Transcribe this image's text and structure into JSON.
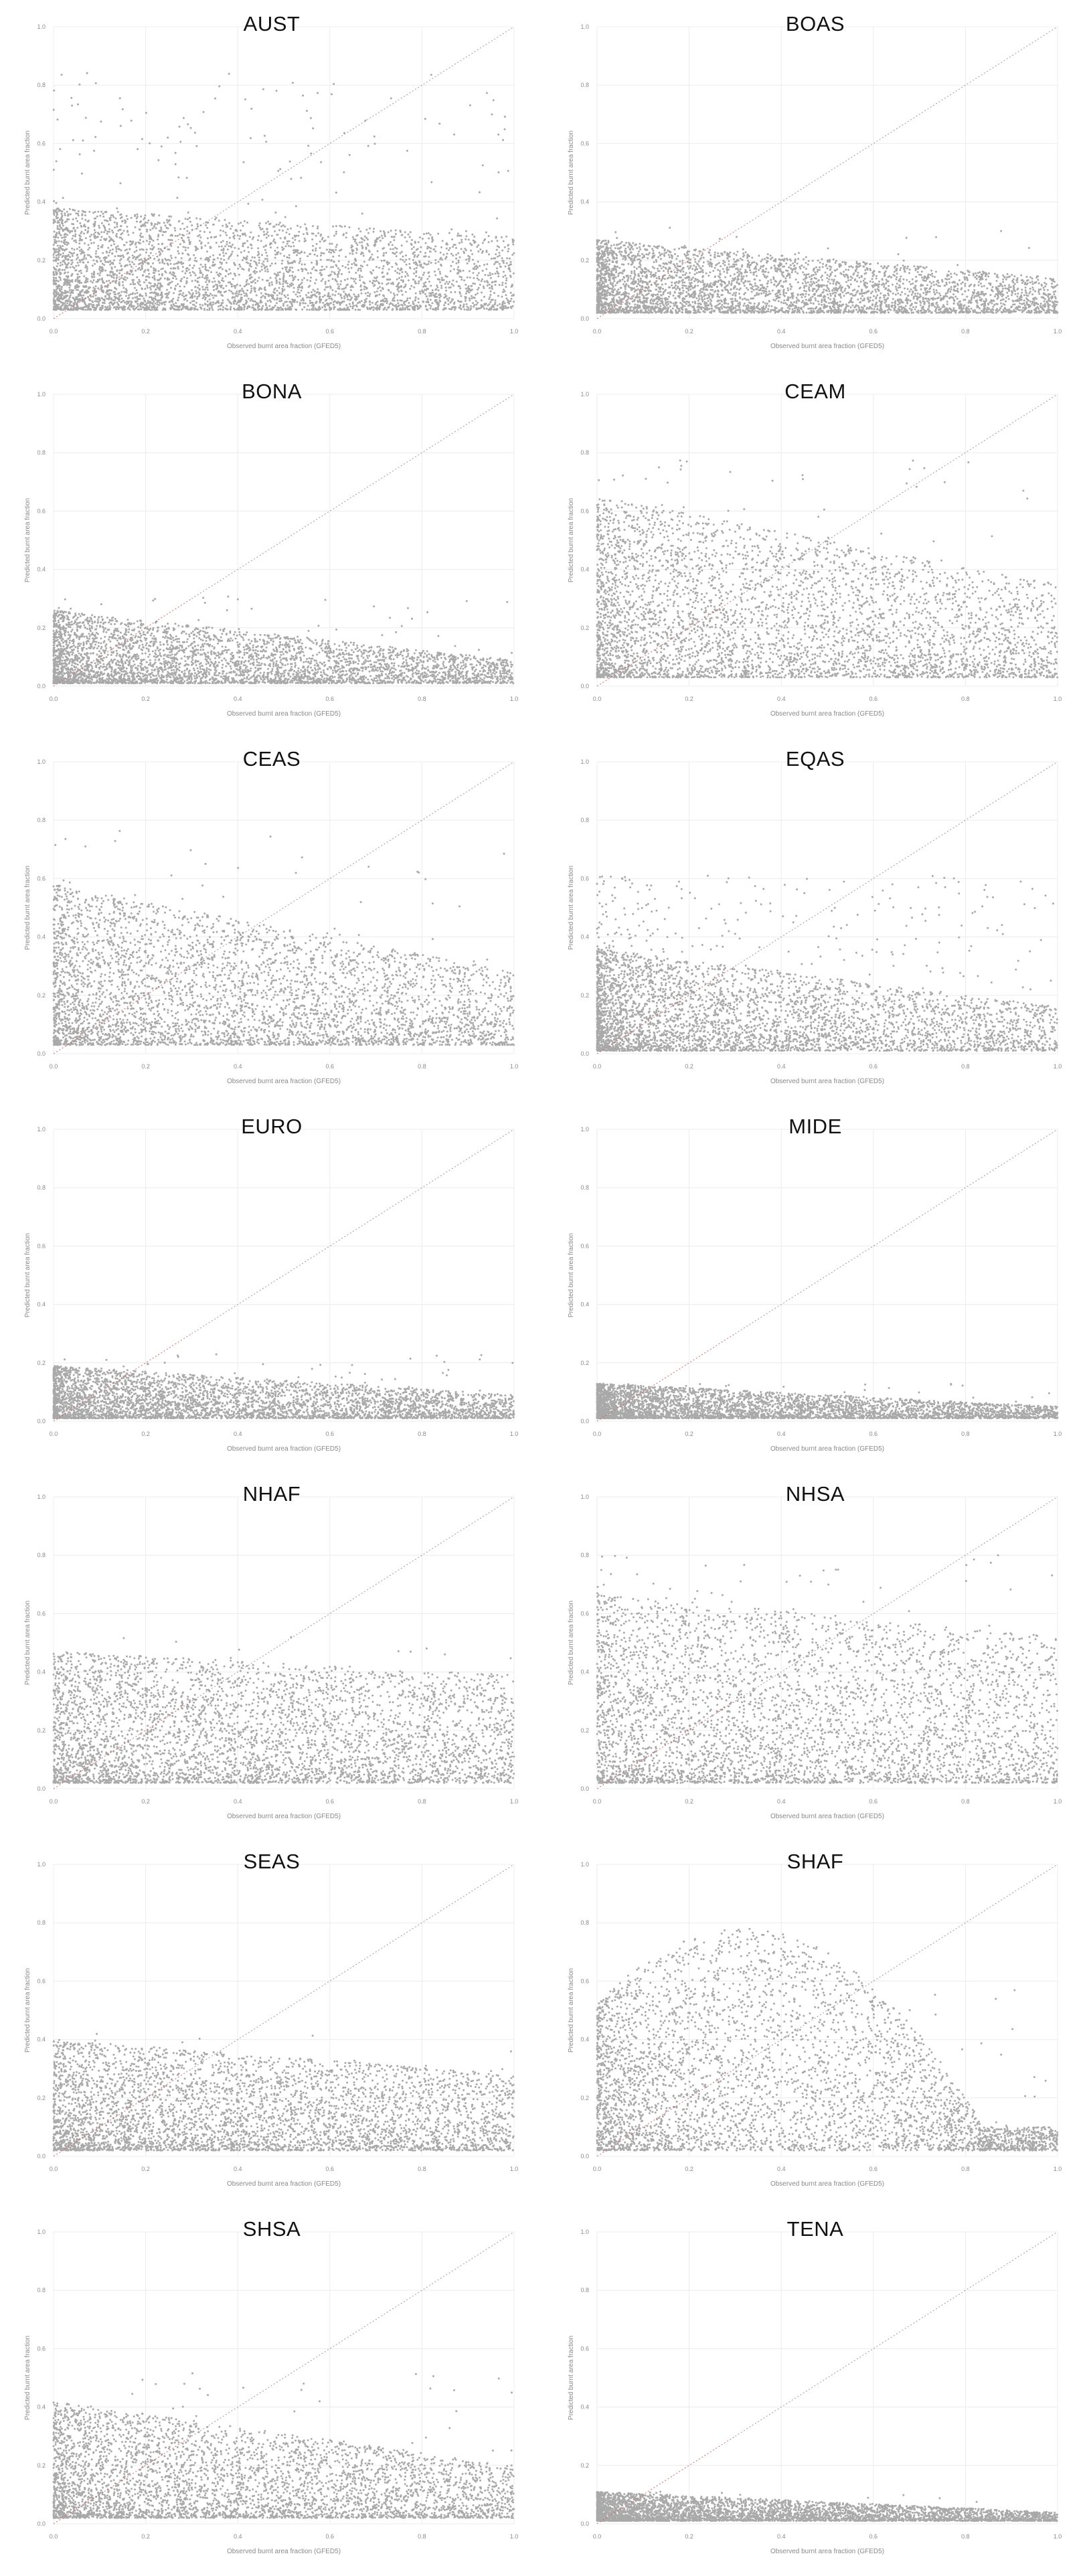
{
  "colors": {
    "points": "#a9a9a9",
    "grid": "#ececec",
    "diagonal": "#9a9a9a",
    "diagonal_low": "#c56b6b"
  },
  "chart_data": [
    {
      "type": "scatter",
      "title": "AUST",
      "xlabel": "Observed burnt area fraction (GFED5)",
      "ylabel": "Predicted burnt area fraction",
      "xlim": [
        0,
        1
      ],
      "ylim": [
        0,
        1
      ],
      "x_ticks": [
        "0.0",
        "0.2",
        "0.4",
        "0.6",
        "0.8",
        "1.0"
      ],
      "y_ticks": [
        "0.0",
        "0.2",
        "0.4",
        "0.6",
        "0.8",
        "1.0"
      ],
      "identity_line": true,
      "grid": true,
      "distribution": {
        "y_floor": 0.03,
        "y_band_top": 0.35,
        "y_band_decay": 0.1,
        "sparse_max": 0.82,
        "sparse_fraction": 0.04,
        "x_concentration": 0.45
      }
    },
    {
      "type": "scatter",
      "title": "BOAS",
      "xlabel": "Observed burnt area fraction (GFED5)",
      "ylabel": "Predicted burnt area fraction",
      "xlim": [
        0,
        1
      ],
      "ylim": [
        0,
        1
      ],
      "x_ticks": [
        "0.0",
        "0.2",
        "0.4",
        "0.6",
        "0.8",
        "1.0"
      ],
      "y_ticks": [
        "0.0",
        "0.2",
        "0.4",
        "0.6",
        "0.8",
        "1.0"
      ],
      "identity_line": true,
      "grid": true,
      "distribution": {
        "y_floor": 0.02,
        "y_band_top": 0.25,
        "y_band_decay": 0.13,
        "sparse_max": 0.3,
        "sparse_fraction": 0.02,
        "x_concentration": 0.55
      }
    },
    {
      "type": "scatter",
      "title": "BONA",
      "xlabel": "Observed burnt area fraction (GFED5)",
      "ylabel": "Predicted burnt area fraction",
      "xlim": [
        0,
        1
      ],
      "ylim": [
        0,
        1
      ],
      "x_ticks": [
        "0.0",
        "0.2",
        "0.4",
        "0.6",
        "0.8",
        "1.0"
      ],
      "y_ticks": [
        "0.0",
        "0.2",
        "0.4",
        "0.6",
        "0.8",
        "1.0"
      ],
      "identity_line": true,
      "grid": true,
      "distribution": {
        "y_floor": 0.01,
        "y_band_top": 0.25,
        "y_band_decay": 0.17,
        "sparse_max": 0.3,
        "sparse_fraction": 0.02,
        "x_concentration": 0.6
      }
    },
    {
      "type": "scatter",
      "title": "CEAM",
      "xlabel": "Observed burnt area fraction (GFED5)",
      "ylabel": "Predicted burnt area fraction",
      "xlim": [
        0,
        1
      ],
      "ylim": [
        0,
        1
      ],
      "x_ticks": [
        "0.0",
        "0.2",
        "0.4",
        "0.6",
        "0.8",
        "1.0"
      ],
      "y_ticks": [
        "0.0",
        "0.2",
        "0.4",
        "0.6",
        "0.8",
        "1.0"
      ],
      "identity_line": true,
      "grid": true,
      "distribution": {
        "y_floor": 0.03,
        "y_band_top": 0.62,
        "y_band_decay": 0.3,
        "sparse_max": 0.75,
        "sparse_fraction": 0.03,
        "x_concentration": 0.5
      }
    },
    {
      "type": "scatter",
      "title": "CEAS",
      "xlabel": "Observed burnt area fraction (GFED5)",
      "ylabel": "Predicted burnt area fraction",
      "xlim": [
        0,
        1
      ],
      "ylim": [
        0,
        1
      ],
      "x_ticks": [
        "0.0",
        "0.2",
        "0.4",
        "0.6",
        "0.8",
        "1.0"
      ],
      "y_ticks": [
        "0.0",
        "0.2",
        "0.4",
        "0.6",
        "0.8",
        "1.0"
      ],
      "identity_line": true,
      "grid": true,
      "distribution": {
        "y_floor": 0.03,
        "y_band_top": 0.55,
        "y_band_decay": 0.3,
        "sparse_max": 0.75,
        "sparse_fraction": 0.03,
        "x_concentration": 0.45
      }
    },
    {
      "type": "scatter",
      "title": "EQAS",
      "xlabel": "Observed burnt area fraction (GFED5)",
      "ylabel": "Predicted burnt area fraction",
      "xlim": [
        0,
        1
      ],
      "ylim": [
        0,
        1
      ],
      "x_ticks": [
        "0.0",
        "0.2",
        "0.4",
        "0.6",
        "0.8",
        "1.0"
      ],
      "y_ticks": [
        "0.0",
        "0.2",
        "0.4",
        "0.6",
        "0.8",
        "1.0"
      ],
      "identity_line": true,
      "grid": true,
      "distribution": {
        "y_floor": 0.01,
        "y_band_top": 0.35,
        "y_band_decay": 0.2,
        "sparse_max": 0.6,
        "sparse_fraction": 0.1,
        "x_concentration": 0.8
      }
    },
    {
      "type": "scatter",
      "title": "EURO",
      "xlabel": "Observed burnt area fraction (GFED5)",
      "ylabel": "Predicted burnt area fraction",
      "xlim": [
        0,
        1
      ],
      "ylim": [
        0,
        1
      ],
      "x_ticks": [
        "0.0",
        "0.2",
        "0.4",
        "0.6",
        "0.8",
        "1.0"
      ],
      "y_ticks": [
        "0.0",
        "0.2",
        "0.4",
        "0.6",
        "0.8",
        "1.0"
      ],
      "identity_line": true,
      "grid": true,
      "distribution": {
        "y_floor": 0.01,
        "y_band_top": 0.18,
        "y_band_decay": 0.1,
        "sparse_max": 0.22,
        "sparse_fraction": 0.02,
        "x_concentration": 0.55
      }
    },
    {
      "type": "scatter",
      "title": "MIDE",
      "xlabel": "Observed burnt area fraction (GFED5)",
      "ylabel": "Predicted burnt area fraction",
      "xlim": [
        0,
        1
      ],
      "ylim": [
        0,
        1
      ],
      "x_ticks": [
        "0.0",
        "0.2",
        "0.4",
        "0.6",
        "0.8",
        "1.0"
      ],
      "y_ticks": [
        "0.0",
        "0.2",
        "0.4",
        "0.6",
        "0.8",
        "1.0"
      ],
      "identity_line": true,
      "grid": true,
      "distribution": {
        "y_floor": 0.01,
        "y_band_top": 0.12,
        "y_band_decay": 0.08,
        "sparse_max": 0.12,
        "sparse_fraction": 0.02,
        "x_concentration": 0.75
      }
    },
    {
      "type": "scatter",
      "title": "NHAF",
      "xlabel": "Observed burnt area fraction (GFED5)",
      "ylabel": "Predicted burnt area fraction",
      "xlim": [
        0,
        1
      ],
      "ylim": [
        0,
        1
      ],
      "x_ticks": [
        "0.0",
        "0.2",
        "0.4",
        "0.6",
        "0.8",
        "1.0"
      ],
      "y_ticks": [
        "0.0",
        "0.2",
        "0.4",
        "0.6",
        "0.8",
        "1.0"
      ],
      "identity_line": true,
      "grid": true,
      "distribution": {
        "y_floor": 0.02,
        "y_band_top": 0.45,
        "y_band_decay": 0.08,
        "sparse_max": 0.5,
        "sparse_fraction": 0.01,
        "x_concentration": 0.3
      }
    },
    {
      "type": "scatter",
      "title": "NHSA",
      "xlabel": "Observed burnt area fraction (GFED5)",
      "ylabel": "Predicted burnt area fraction",
      "xlim": [
        0,
        1
      ],
      "ylim": [
        0,
        1
      ],
      "x_ticks": [
        "0.0",
        "0.2",
        "0.4",
        "0.6",
        "0.8",
        "1.0"
      ],
      "y_ticks": [
        "0.0",
        "0.2",
        "0.4",
        "0.6",
        "0.8",
        "1.0"
      ],
      "identity_line": true,
      "grid": true,
      "distribution": {
        "y_floor": 0.02,
        "y_band_top": 0.65,
        "y_band_decay": 0.15,
        "sparse_max": 0.78,
        "sparse_fraction": 0.03,
        "x_concentration": 0.3
      }
    },
    {
      "type": "scatter",
      "title": "SEAS",
      "xlabel": "Observed burnt area fraction (GFED5)",
      "ylabel": "Predicted burnt area fraction",
      "xlim": [
        0,
        1
      ],
      "ylim": [
        0,
        1
      ],
      "x_ticks": [
        "0.0",
        "0.2",
        "0.4",
        "0.6",
        "0.8",
        "1.0"
      ],
      "y_ticks": [
        "0.0",
        "0.2",
        "0.4",
        "0.6",
        "0.8",
        "1.0"
      ],
      "identity_line": true,
      "grid": true,
      "distribution": {
        "y_floor": 0.02,
        "y_band_top": 0.38,
        "y_band_decay": 0.12,
        "sparse_max": 0.42,
        "sparse_fraction": 0.02,
        "x_concentration": 0.35
      }
    },
    {
      "type": "scatter",
      "title": "SHAF",
      "xlabel": "Observed burnt area fraction (GFED5)",
      "ylabel": "Predicted burnt area fraction",
      "xlim": [
        0,
        1
      ],
      "ylim": [
        0,
        1
      ],
      "x_ticks": [
        "0.0",
        "0.2",
        "0.4",
        "0.6",
        "0.8",
        "1.0"
      ],
      "y_ticks": [
        "0.0",
        "0.2",
        "0.4",
        "0.6",
        "0.8",
        "1.0"
      ],
      "identity_line": true,
      "grid": true,
      "distribution": {
        "y_floor": 0.02,
        "y_band_top": 0.8,
        "y_band_decay": 0.0,
        "sparse_max": 0.55,
        "sparse_fraction": 0.02,
        "x_concentration": 0.45,
        "dome": true
      }
    },
    {
      "type": "scatter",
      "title": "SHSA",
      "xlabel": "Observed burnt area fraction (GFED5)",
      "ylabel": "Predicted burnt area fraction",
      "xlim": [
        0,
        1
      ],
      "ylim": [
        0,
        1
      ],
      "x_ticks": [
        "0.0",
        "0.2",
        "0.4",
        "0.6",
        "0.8",
        "1.0"
      ],
      "y_ticks": [
        "0.0",
        "0.2",
        "0.4",
        "0.6",
        "0.8",
        "1.0"
      ],
      "identity_line": true,
      "grid": true,
      "distribution": {
        "y_floor": 0.02,
        "y_band_top": 0.4,
        "y_band_decay": 0.22,
        "sparse_max": 0.5,
        "sparse_fraction": 0.02,
        "x_concentration": 0.4
      }
    },
    {
      "type": "scatter",
      "title": "TENA",
      "xlabel": "Observed burnt area fraction (GFED5)",
      "ylabel": "Predicted burnt area fraction",
      "xlim": [
        0,
        1
      ],
      "ylim": [
        0,
        1
      ],
      "x_ticks": [
        "0.0",
        "0.2",
        "0.4",
        "0.6",
        "0.8",
        "1.0"
      ],
      "y_ticks": [
        "0.0",
        "0.2",
        "0.4",
        "0.6",
        "0.8",
        "1.0"
      ],
      "identity_line": true,
      "grid": true,
      "distribution": {
        "y_floor": 0.01,
        "y_band_top": 0.1,
        "y_band_decay": 0.07,
        "sparse_max": 0.1,
        "sparse_fraction": 0.01,
        "x_concentration": 0.6
      }
    }
  ]
}
